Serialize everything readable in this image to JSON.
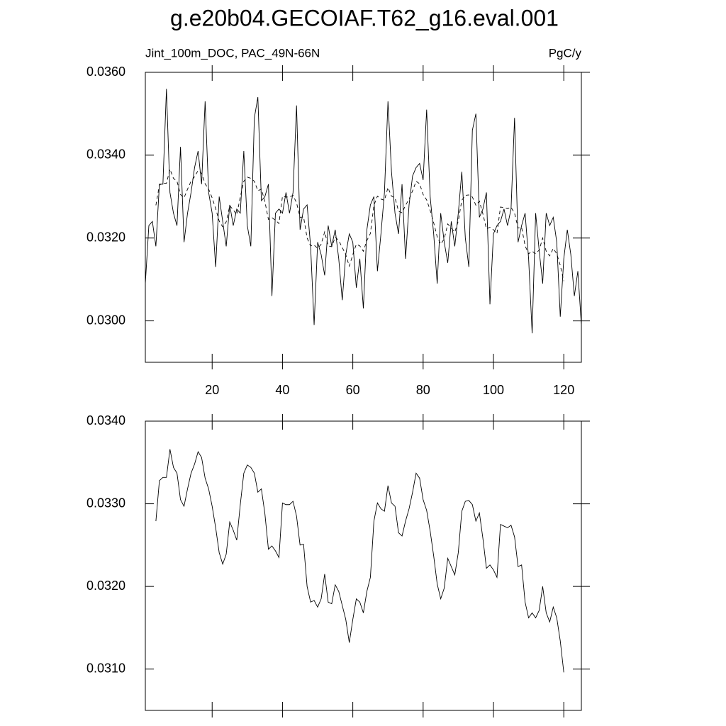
{
  "chart_data": [
    {
      "type": "line",
      "title": "g.e20b04.GECOIAF.T62_g16.eval.001",
      "subtitle_left": "Jint_100m_DOC, PAC_49N-66N",
      "subtitle_right": "PgC/y",
      "x": [
        1,
        2,
        3,
        4,
        5,
        6,
        7,
        8,
        9,
        10,
        11,
        12,
        13,
        14,
        15,
        16,
        17,
        18,
        19,
        20,
        21,
        22,
        23,
        24,
        25,
        26,
        27,
        28,
        29,
        30,
        31,
        32,
        33,
        34,
        35,
        36,
        37,
        38,
        39,
        40,
        41,
        42,
        43,
        44,
        45,
        46,
        47,
        48,
        49,
        50,
        51,
        52,
        53,
        54,
        55,
        56,
        57,
        58,
        59,
        60,
        61,
        62,
        63,
        64,
        65,
        66,
        67,
        68,
        69,
        70,
        71,
        72,
        73,
        74,
        75,
        76,
        77,
        78,
        79,
        80,
        81,
        82,
        83,
        84,
        85,
        86,
        87,
        88,
        89,
        90,
        91,
        92,
        93,
        94,
        95,
        96,
        97,
        98,
        99,
        100,
        101,
        102,
        103,
        104,
        105,
        106,
        107,
        108,
        109,
        110,
        111,
        112,
        113,
        114,
        115,
        116,
        117,
        118,
        119,
        120,
        121,
        122,
        123,
        124,
        125
      ],
      "series": [
        {
          "color": "#000000",
          "dashed": false,
          "values": [
            0.0309,
            0.0323,
            0.0324,
            0.0318,
            0.0333,
            0.0333,
            0.0356,
            0.0331,
            0.0326,
            0.0323,
            0.0342,
            0.0319,
            0.0326,
            0.0331,
            0.0337,
            0.0341,
            0.0333,
            0.0353,
            0.0331,
            0.0326,
            0.0313,
            0.033,
            0.0324,
            0.0318,
            0.0328,
            0.0323,
            0.0327,
            0.0326,
            0.0341,
            0.0323,
            0.0318,
            0.0349,
            0.0354,
            0.0329,
            0.033,
            0.0333,
            0.0306,
            0.0326,
            0.0327,
            0.0326,
            0.0331,
            0.0326,
            0.0331,
            0.0352,
            0.0322,
            0.0327,
            0.0328,
            0.0318,
            0.0299,
            0.0319,
            0.0316,
            0.0311,
            0.0323,
            0.0318,
            0.0322,
            0.0315,
            0.0305,
            0.0316,
            0.0321,
            0.0319,
            0.0308,
            0.0315,
            0.0303,
            0.0322,
            0.0328,
            0.033,
            0.0312,
            0.0321,
            0.0331,
            0.0353,
            0.0336,
            0.0326,
            0.0321,
            0.0333,
            0.0315,
            0.0328,
            0.0335,
            0.0337,
            0.0338,
            0.0334,
            0.0351,
            0.033,
            0.0321,
            0.0309,
            0.0326,
            0.0319,
            0.0314,
            0.0324,
            0.0318,
            0.0326,
            0.0336,
            0.032,
            0.0313,
            0.0346,
            0.035,
            0.0325,
            0.0327,
            0.0331,
            0.0304,
            0.0321,
            0.0323,
            0.0324,
            0.0327,
            0.0323,
            0.0327,
            0.0349,
            0.0319,
            0.0323,
            0.0326,
            0.0315,
            0.0297,
            0.0326,
            0.0317,
            0.0309,
            0.0326,
            0.0323,
            0.0325,
            0.0319,
            0.0301,
            0.0315,
            0.0322,
            0.0316,
            0.0306,
            0.0312,
            0.0299
          ]
        },
        {
          "color": "#000000",
          "dashed": true,
          "values": [
            null,
            null,
            null,
            0.03279,
            0.03328,
            0.03332,
            0.03332,
            0.03366,
            0.03344,
            0.03337,
            0.03305,
            0.03297,
            0.03318,
            0.03337,
            0.03348,
            0.03363,
            0.03356,
            0.03331,
            0.03318,
            0.03297,
            0.03271,
            0.03241,
            0.03227,
            0.03239,
            0.03278,
            0.03268,
            0.03256,
            0.03299,
            0.03337,
            0.03347,
            0.03344,
            0.03337,
            0.03314,
            0.03318,
            0.03288,
            0.03245,
            0.03249,
            0.03243,
            0.03235,
            0.03301,
            0.03299,
            0.03299,
            0.03303,
            0.03285,
            0.0325,
            0.03251,
            0.032,
            0.03181,
            0.03183,
            0.03175,
            0.03185,
            0.03215,
            0.03181,
            0.03179,
            0.03202,
            0.03194,
            0.03177,
            0.0316,
            0.03132,
            0.0316,
            0.03185,
            0.03181,
            0.03168,
            0.03194,
            0.03211,
            0.03279,
            0.03301,
            0.03294,
            0.03291,
            0.03322,
            0.03301,
            0.03297,
            0.03265,
            0.03261,
            0.03279,
            0.03294,
            0.03314,
            0.03337,
            0.03331,
            0.03305,
            0.03292,
            0.03267,
            0.03237,
            0.03203,
            0.03185,
            0.03198,
            0.03234,
            0.03224,
            0.03214,
            0.03241,
            0.03291,
            0.03303,
            0.03304,
            0.03299,
            0.03279,
            0.03289,
            0.03258,
            0.03222,
            0.03226,
            0.0322,
            0.03211,
            0.03275,
            0.03273,
            0.03271,
            0.03274,
            0.0326,
            0.03224,
            0.03226,
            0.03181,
            0.03162,
            0.03168,
            0.03162,
            0.03171,
            0.032,
            0.03168,
            0.03157,
            0.03175,
            0.03162,
            0.03134,
            0.03096,
            null,
            null,
            null,
            null,
            null
          ]
        }
      ],
      "xlim": [
        1,
        125
      ],
      "xticks": [
        20,
        40,
        60,
        80,
        100,
        120
      ],
      "xtick_labels_shown": true,
      "ylim": [
        0.029,
        0.036
      ],
      "yticks": [
        {
          "value": 0.03,
          "label": "0.0300"
        },
        {
          "value": 0.032,
          "label": "0.0320"
        },
        {
          "value": 0.034,
          "label": "0.0340"
        },
        {
          "value": 0.036,
          "label": "0.0360"
        }
      ]
    },
    {
      "type": "line",
      "x": [
        1,
        2,
        3,
        4,
        5,
        6,
        7,
        8,
        9,
        10,
        11,
        12,
        13,
        14,
        15,
        16,
        17,
        18,
        19,
        20,
        21,
        22,
        23,
        24,
        25,
        26,
        27,
        28,
        29,
        30,
        31,
        32,
        33,
        34,
        35,
        36,
        37,
        38,
        39,
        40,
        41,
        42,
        43,
        44,
        45,
        46,
        47,
        48,
        49,
        50,
        51,
        52,
        53,
        54,
        55,
        56,
        57,
        58,
        59,
        60,
        61,
        62,
        63,
        64,
        65,
        66,
        67,
        68,
        69,
        70,
        71,
        72,
        73,
        74,
        75,
        76,
        77,
        78,
        79,
        80,
        81,
        82,
        83,
        84,
        85,
        86,
        87,
        88,
        89,
        90,
        91,
        92,
        93,
        94,
        95,
        96,
        97,
        98,
        99,
        100,
        101,
        102,
        103,
        104,
        105,
        106,
        107,
        108,
        109,
        110,
        111,
        112,
        113,
        114,
        115,
        116,
        117,
        118,
        119,
        120,
        121,
        122,
        123,
        124,
        125
      ],
      "series": [
        {
          "color": "#000000",
          "dashed": false,
          "values": [
            null,
            null,
            null,
            0.03279,
            0.03328,
            0.03332,
            0.03332,
            0.03366,
            0.03344,
            0.03337,
            0.03305,
            0.03297,
            0.03318,
            0.03337,
            0.03348,
            0.03363,
            0.03356,
            0.03331,
            0.03318,
            0.03297,
            0.03271,
            0.03241,
            0.03227,
            0.03239,
            0.03278,
            0.03268,
            0.03256,
            0.03299,
            0.03337,
            0.03347,
            0.03344,
            0.03337,
            0.03314,
            0.03318,
            0.03288,
            0.03245,
            0.03249,
            0.03243,
            0.03235,
            0.03301,
            0.03299,
            0.03299,
            0.03303,
            0.03285,
            0.0325,
            0.03251,
            0.032,
            0.03181,
            0.03183,
            0.03175,
            0.03185,
            0.03215,
            0.03181,
            0.03179,
            0.03202,
            0.03194,
            0.03177,
            0.0316,
            0.03132,
            0.0316,
            0.03185,
            0.03181,
            0.03168,
            0.03194,
            0.03211,
            0.03279,
            0.03301,
            0.03294,
            0.03291,
            0.03322,
            0.03301,
            0.03297,
            0.03265,
            0.03261,
            0.03279,
            0.03294,
            0.03314,
            0.03337,
            0.03331,
            0.03305,
            0.03292,
            0.03267,
            0.03237,
            0.03203,
            0.03185,
            0.03198,
            0.03234,
            0.03224,
            0.03214,
            0.03241,
            0.03291,
            0.03303,
            0.03304,
            0.03299,
            0.03279,
            0.03289,
            0.03258,
            0.03222,
            0.03226,
            0.0322,
            0.03211,
            0.03275,
            0.03273,
            0.03271,
            0.03274,
            0.0326,
            0.03224,
            0.03226,
            0.03181,
            0.03162,
            0.03168,
            0.03162,
            0.03171,
            0.032,
            0.03168,
            0.03157,
            0.03175,
            0.03162,
            0.03134,
            0.03096,
            null,
            null,
            null,
            null,
            null
          ]
        }
      ],
      "xlim": [
        1,
        125
      ],
      "xticks": [
        20,
        40,
        60,
        80,
        100,
        120
      ],
      "xtick_labels_shown": false,
      "ylim": [
        0.0305,
        0.034
      ],
      "yticks": [
        {
          "value": 0.031,
          "label": "0.0310"
        },
        {
          "value": 0.032,
          "label": "0.0320"
        },
        {
          "value": 0.033,
          "label": "0.0330"
        },
        {
          "value": 0.034,
          "label": "0.0340"
        }
      ]
    }
  ]
}
